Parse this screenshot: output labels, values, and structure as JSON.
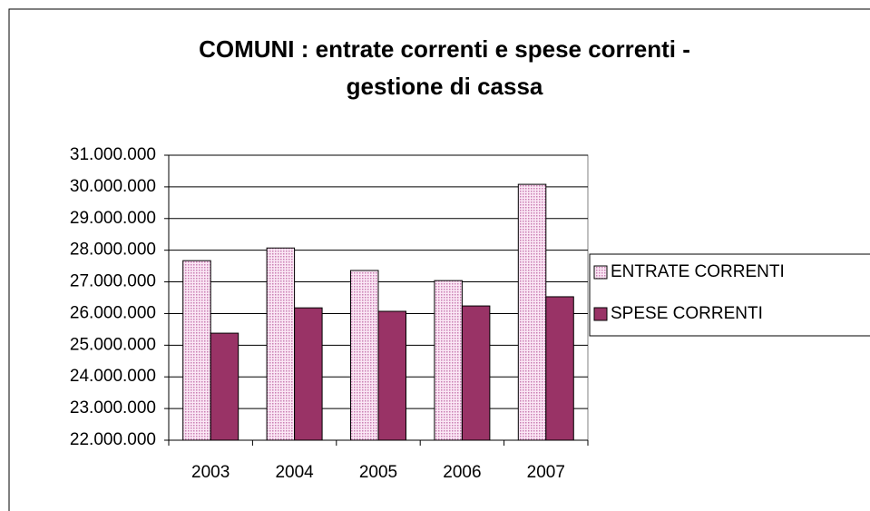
{
  "chart_data": {
    "type": "bar",
    "title": [
      "COMUNI : entrate correnti e spese correnti -",
      "gestione di cassa"
    ],
    "categories": [
      "2003",
      "2004",
      "2005",
      "2006",
      "2007"
    ],
    "series": [
      {
        "name": "ENTRATE CORRENTI",
        "color": "#f4c6e6",
        "values": [
          27670000,
          28070000,
          27360000,
          27040000,
          30080000
        ]
      },
      {
        "name": "SPESE CORRENTI",
        "color": "#993366",
        "values": [
          25380000,
          26180000,
          26070000,
          26240000,
          26530000
        ]
      }
    ],
    "ylim": [
      22000000,
      31000000
    ],
    "yticks": [
      {
        "value": 22000000,
        "label": "22.000.000"
      },
      {
        "value": 23000000,
        "label": "23.000.000"
      },
      {
        "value": 24000000,
        "label": "24.000.000"
      },
      {
        "value": 25000000,
        "label": "25.000.000"
      },
      {
        "value": 26000000,
        "label": "26.000.000"
      },
      {
        "value": 27000000,
        "label": "27.000.000"
      },
      {
        "value": 28000000,
        "label": "28.000.000"
      },
      {
        "value": 29000000,
        "label": "29.000.000"
      },
      {
        "value": 30000000,
        "label": "30.000.000"
      },
      {
        "value": 31000000,
        "label": "31.000.000"
      }
    ],
    "grid": true,
    "legend": "right"
  }
}
